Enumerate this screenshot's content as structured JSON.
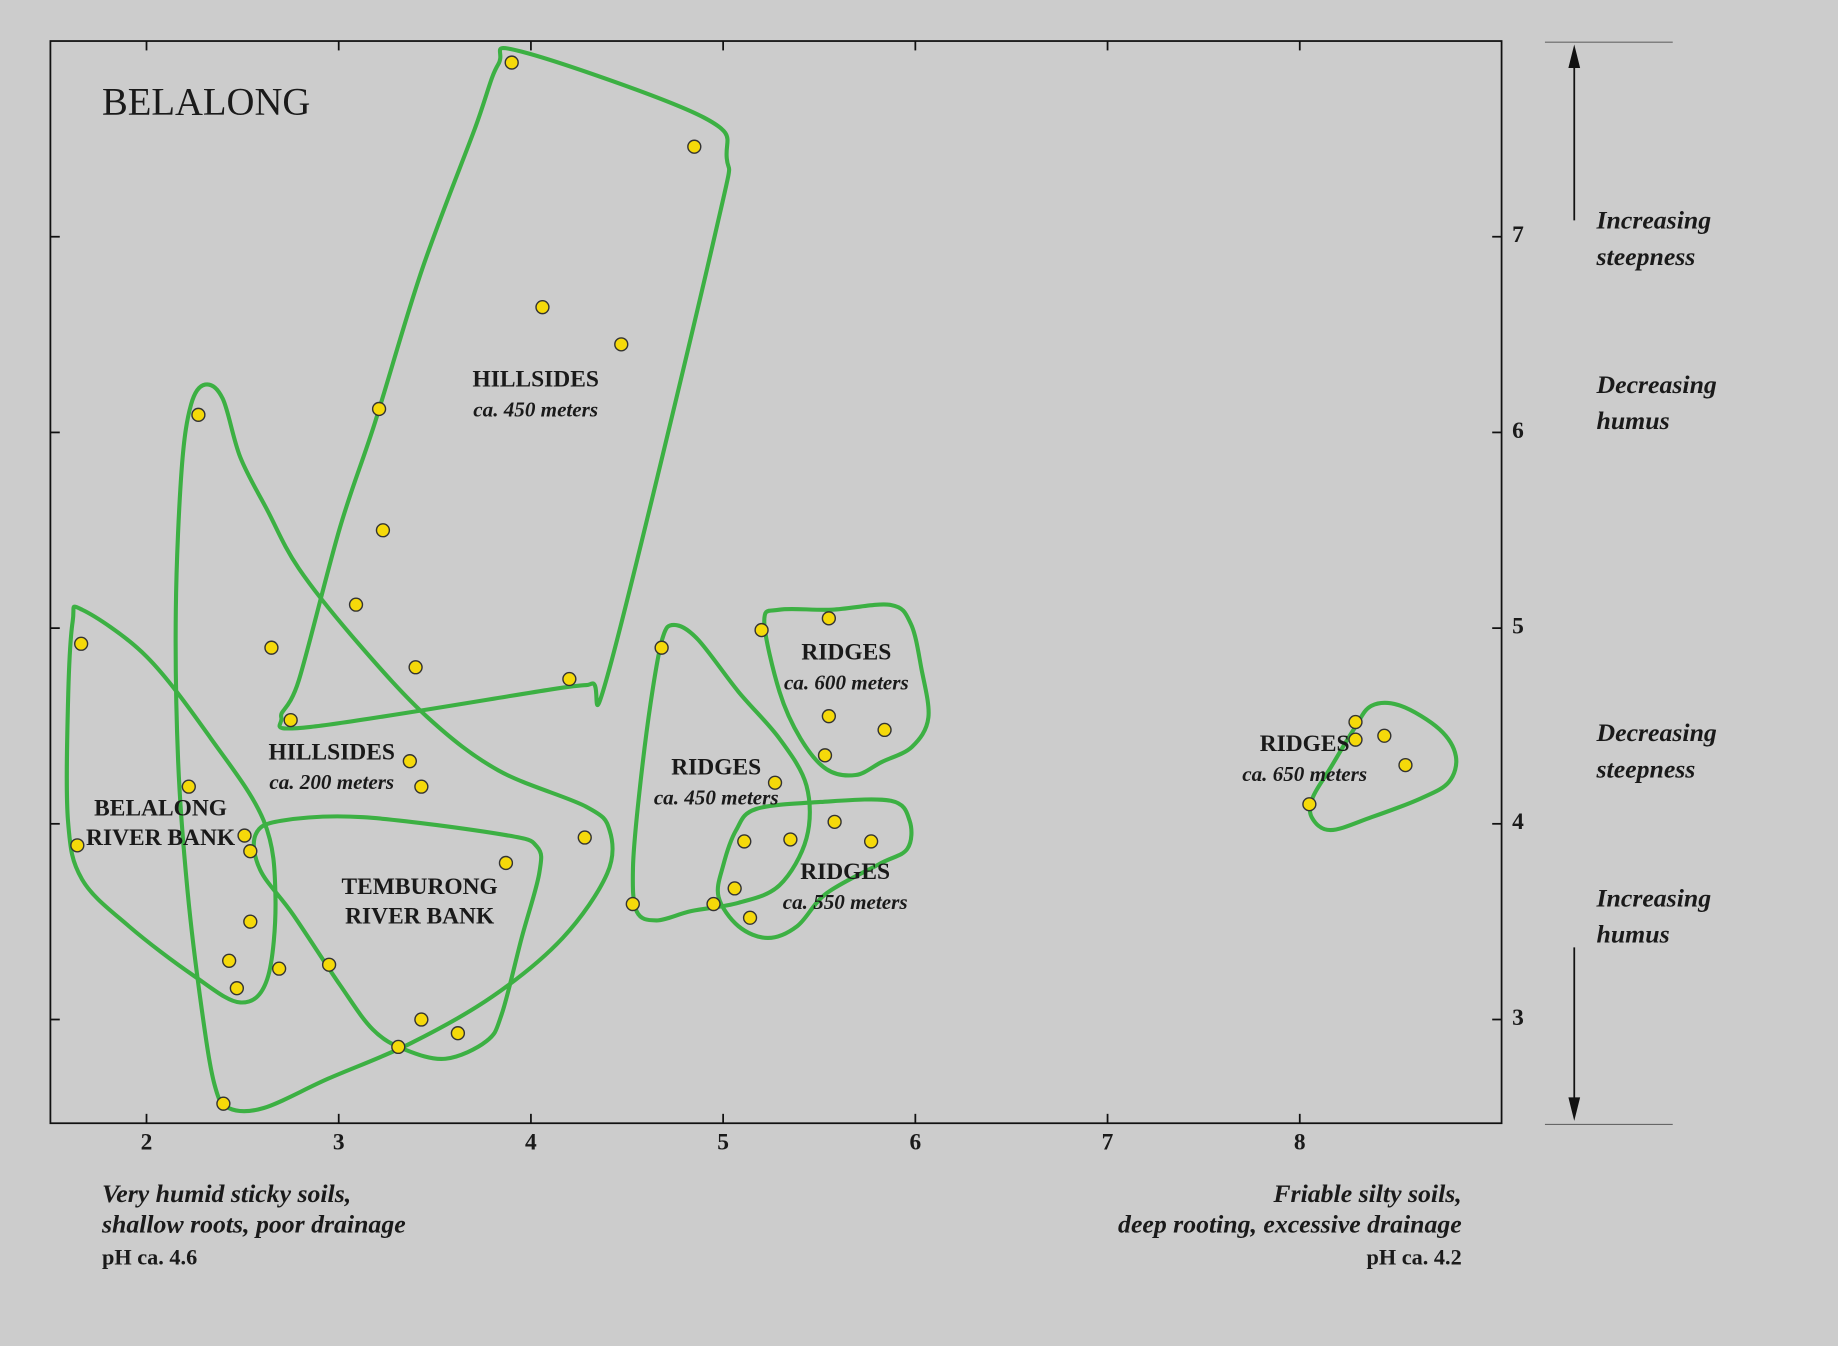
{
  "chart_data": {
    "type": "scatter",
    "title": "BELALONG",
    "xlim": [
      1.5,
      9.05
    ],
    "ylim": [
      2.47,
      8.0
    ],
    "xticks": [
      2,
      3,
      4,
      5,
      6,
      7,
      8
    ],
    "yticks": [
      3,
      4,
      5,
      6,
      7
    ],
    "series": [
      {
        "color": "#f5d90a",
        "x": [
          3.9,
          4.85,
          4.06,
          4.47,
          3.21,
          2.27,
          3.23,
          3.09,
          2.65,
          3.4,
          4.2,
          2.75,
          1.66,
          3.37,
          3.43,
          2.22,
          1.64,
          2.51,
          2.54,
          4.28,
          3.87,
          2.54,
          2.43,
          2.69,
          2.95,
          2.47,
          3.43,
          3.62,
          3.31,
          2.4,
          4.68,
          5.2,
          5.55,
          5.55,
          5.84,
          5.53,
          5.27,
          4.53,
          4.95,
          5.11,
          5.35,
          5.58,
          5.77,
          5.06,
          5.14,
          8.29,
          8.29,
          8.44,
          8.55,
          8.05
        ],
        "values": [
          7.89,
          7.46,
          6.64,
          6.45,
          6.12,
          6.09,
          5.5,
          5.12,
          4.9,
          4.8,
          4.74,
          4.53,
          4.92,
          4.32,
          4.19,
          4.19,
          3.89,
          3.94,
          3.86,
          3.93,
          3.8,
          3.5,
          3.3,
          3.26,
          3.28,
          3.16,
          3.0,
          2.93,
          2.86,
          2.57,
          4.9,
          4.99,
          5.05,
          4.55,
          4.48,
          4.35,
          4.21,
          3.59,
          3.59,
          3.91,
          3.92,
          4.01,
          3.91,
          3.67,
          3.52,
          4.52,
          4.43,
          4.45,
          4.3,
          4.1
        ]
      }
    ],
    "group_color": "#3cb043",
    "groups": [
      {
        "name_lines": [
          "HILLSIDES"
        ],
        "elevation": "ca. 450 meters"
      },
      {
        "name_lines": [
          "HILLSIDES"
        ],
        "elevation": "ca. 200 meters"
      },
      {
        "name_lines": [
          "BELALONG",
          "RIVER BANK"
        ]
      },
      {
        "name_lines": [
          "TEMBURONG",
          "RIVER BANK"
        ]
      },
      {
        "name_lines": [
          "RIDGES"
        ],
        "elevation": "ca. 450 meters"
      },
      {
        "name_lines": [
          "RIDGES"
        ],
        "elevation": "ca. 600 meters"
      },
      {
        "name_lines": [
          "RIDGES"
        ],
        "elevation": "ca. 550 meters"
      },
      {
        "name_lines": [
          "RIDGES"
        ],
        "elevation": "ca. 650 meters"
      }
    ],
    "side_notes": [
      [
        "Increasing",
        "steepness"
      ],
      [
        "Decreasing",
        "humus"
      ],
      [
        "Decreasing",
        "steepness"
      ],
      [
        "Increasing",
        "humus"
      ]
    ],
    "x_notes": {
      "left": [
        "Very humid sticky soils,",
        "shallow roots, poor drainage",
        "pH ca. 4.6"
      ],
      "right": [
        "Friable silty soils,",
        "deep rooting, excessive drainage",
        "pH ca. 4.2"
      ]
    }
  }
}
